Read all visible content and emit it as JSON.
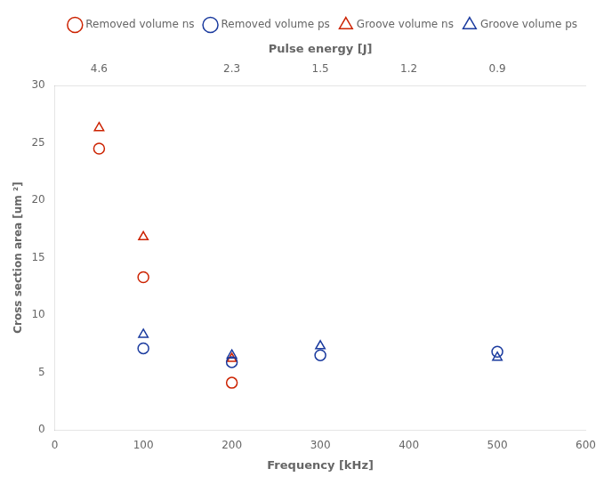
{
  "chart_data": {
    "type": "scatter",
    "x_label": "Frequency [kHz]",
    "y_label": "Cross section area [um ²]",
    "x2label": "Pulse energy [J]",
    "xlim": [
      0,
      600
    ],
    "ylim": [
      0,
      30
    ],
    "xticks": [
      0,
      100,
      200,
      300,
      400,
      500,
      600
    ],
    "yticks": [
      0,
      5,
      10,
      15,
      20,
      25,
      30
    ],
    "x2lim": [
      0,
      600
    ],
    "x2ticks": [
      {
        "value": 50,
        "label": "4.6"
      },
      {
        "value": 200,
        "label": "2.3"
      },
      {
        "value": 300,
        "label": "1.5"
      },
      {
        "value": 400,
        "label": "1.2"
      },
      {
        "value": 500,
        "label": "0.9"
      }
    ],
    "grid": false,
    "legend": "upper right",
    "series": [
      {
        "name": "Removed volume ns",
        "color": "#cc2200",
        "marker": "circle",
        "x": [
          50,
          100,
          200
        ],
        "values": [
          24.5,
          13.3,
          4.1
        ]
      },
      {
        "name": "Removed volume ps",
        "color": "#1a3a9e",
        "marker": "circle",
        "x": [
          100,
          200,
          300,
          500
        ],
        "values": [
          7.1,
          5.9,
          6.5,
          6.8
        ]
      },
      {
        "name": "Groove volume ns",
        "color": "#cc2200",
        "marker": "triangle",
        "x": [
          50,
          100,
          200
        ],
        "values": [
          26.3,
          16.8,
          6.2
        ]
      },
      {
        "name": "Groove volume ps",
        "color": "#1a3a9e",
        "marker": "triangle",
        "x": [
          100,
          200,
          300,
          500
        ],
        "values": [
          8.3,
          6.5,
          7.3,
          6.3
        ]
      }
    ]
  }
}
